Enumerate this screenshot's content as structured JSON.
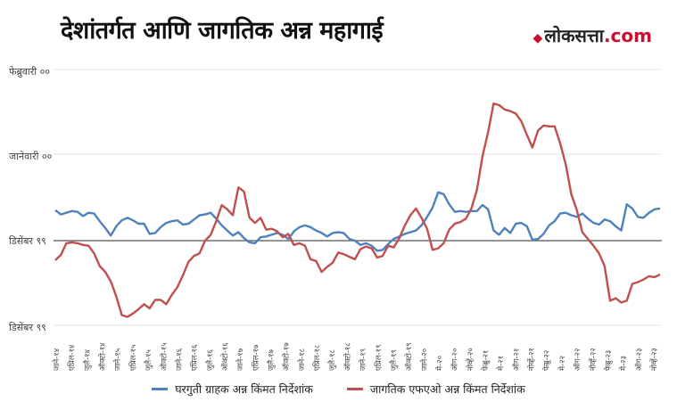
{
  "header": {
    "title": "देशांतर्गत आणि जागतिक अन्न महागाई",
    "brand_name": "लोकसत्ता",
    "brand_tld": ".com"
  },
  "colors": {
    "domestic": "#4f81bd",
    "global": "#c0504d",
    "grid": "#e4e4e4",
    "baseline": "#555555"
  },
  "chart_data": {
    "type": "line",
    "title": "देशांतर्गत आणि जागतिक अन्न महागाई",
    "y_tick_labels": [
      "फेब्रुवारी ००",
      "जानेवारी ००",
      "डिसेंबर ९९",
      "डिसेंबर ९९"
    ],
    "grid": true,
    "legend_position": "bottom",
    "x_tick_labels": [
      "जाने-१४",
      "एप्रिल-१४",
      "जुलै-१४",
      "ऑक्टो-१४",
      "जाने-१५",
      "एप्रिल-१५",
      "जुलै-१५",
      "ऑक्टो-१५",
      "जाने-१६",
      "एप्रिल-१६",
      "जुलै-१६",
      "ऑक्टो-१६",
      "जाने-१७",
      "एप्रिल-१७",
      "जुलै-१७",
      "ऑक्टो-१७",
      "जाने-१८",
      "एप्रिल-१८",
      "जुलै-१८",
      "ऑक्टो-१८",
      "जाने-१९",
      "एप्रिल-१९",
      "जुलै-१९",
      "ऑक्टो-१९",
      "जाने-२०",
      "मे-२०",
      "ऑग-२०",
      "नोव्हें-२०",
      "फेब्रु-२१",
      "मे-२१",
      "ऑग-२१",
      "नोव्हें-२१",
      "फेब्रु-२२",
      "मे-२२",
      "ऑग-२२",
      "नोव्हें-२२",
      "फेब्रु-२३",
      "मे-२३",
      "ऑग-२३",
      "नोव्हें-२३"
    ],
    "series": [
      {
        "name": "घरगुती ग्राहक अन्न किंमत निर्देशांक",
        "color": "#4f81bd",
        "values": [
          0.36,
          0.31,
          0.33,
          0.35,
          0.34,
          0.29,
          0.33,
          0.32,
          0.23,
          0.15,
          0.06,
          0.17,
          0.24,
          0.27,
          0.24,
          0.2,
          0.2,
          0.08,
          0.09,
          0.16,
          0.21,
          0.23,
          0.24,
          0.19,
          0.2,
          0.25,
          0.3,
          0.31,
          0.33,
          0.26,
          0.18,
          0.12,
          0.06,
          0.1,
          0.03,
          -0.02,
          -0.03,
          0.04,
          0.05,
          0.07,
          0.09,
          0.07,
          0.02,
          0.11,
          0.16,
          0.18,
          0.16,
          0.12,
          0.09,
          0.05,
          0.09,
          0.1,
          0.09,
          0.02,
          0.0,
          -0.05,
          -0.03,
          -0.06,
          -0.12,
          -0.11,
          -0.04,
          0.02,
          0.05,
          0.08,
          0.1,
          0.12,
          0.18,
          0.28,
          0.39,
          0.57,
          0.55,
          0.43,
          0.34,
          0.35,
          0.34,
          0.35,
          0.35,
          0.42,
          0.37,
          0.12,
          0.07,
          0.15,
          0.09,
          0.2,
          0.21,
          0.17,
          0.01,
          0.02,
          0.08,
          0.18,
          0.23,
          0.32,
          0.33,
          0.3,
          0.28,
          0.32,
          0.26,
          0.21,
          0.19,
          0.25,
          0.23,
          0.17,
          0.12,
          0.43,
          0.38,
          0.28,
          0.27,
          0.33,
          0.37,
          0.38
        ]
      },
      {
        "name": "जागतिक एफएओ अन्न किंमत निर्देशांक",
        "color": "#c0504d",
        "values": [
          -0.23,
          -0.17,
          -0.03,
          -0.02,
          -0.03,
          -0.05,
          -0.06,
          -0.15,
          -0.3,
          -0.37,
          -0.48,
          -0.66,
          -0.88,
          -0.9,
          -0.86,
          -0.81,
          -0.75,
          -0.8,
          -0.7,
          -0.7,
          -0.75,
          -0.64,
          -0.55,
          -0.41,
          -0.25,
          -0.18,
          -0.15,
          0.0,
          0.07,
          0.23,
          0.42,
          0.37,
          0.3,
          0.63,
          0.58,
          0.27,
          0.21,
          0.27,
          0.13,
          0.14,
          0.11,
          0.04,
          0.08,
          -0.05,
          -0.03,
          -0.06,
          -0.22,
          -0.24,
          -0.37,
          -0.31,
          -0.26,
          -0.14,
          -0.16,
          -0.19,
          -0.22,
          -0.1,
          -0.07,
          -0.09,
          -0.2,
          -0.18,
          -0.06,
          -0.08,
          0.03,
          0.18,
          0.3,
          0.38,
          0.27,
          0.14,
          -0.11,
          -0.09,
          -0.03,
          0.13,
          0.2,
          0.22,
          0.26,
          0.38,
          0.6,
          1.0,
          1.28,
          1.62,
          1.6,
          1.55,
          1.53,
          1.5,
          1.41,
          1.25,
          1.1,
          1.3,
          1.36,
          1.35,
          1.35,
          1.15,
          0.9,
          0.55,
          0.36,
          0.1,
          0.02,
          -0.06,
          -0.15,
          -0.3,
          -0.71,
          -0.68,
          -0.73,
          -0.71,
          -0.51,
          -0.49,
          -0.46,
          -0.42,
          -0.43,
          -0.4
        ]
      }
    ]
  }
}
